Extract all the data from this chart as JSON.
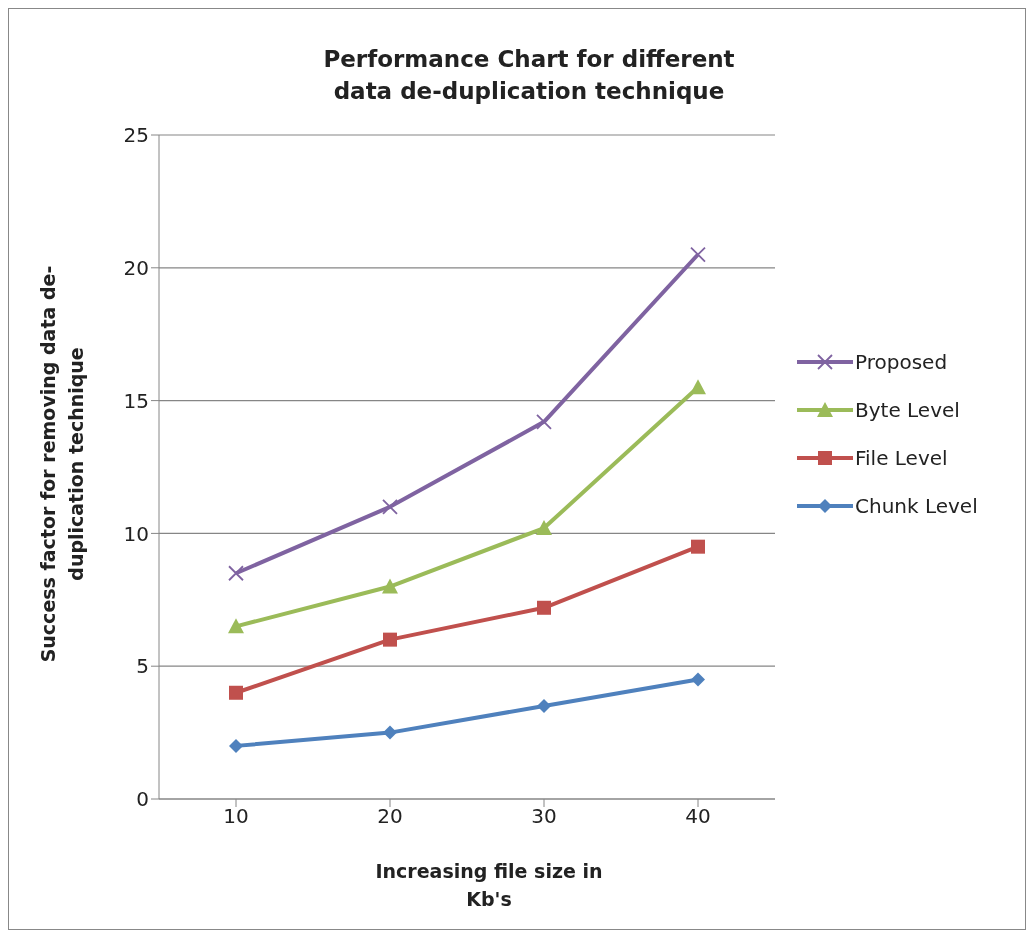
{
  "chart_data": {
    "type": "line",
    "title": "Performance Chart for different data de-duplication technique",
    "xlabel": "Increasing file size in Kb's",
    "ylabel": "Success factor for removing data de-duplication technique",
    "categories": [
      "10",
      "20",
      "30",
      "40"
    ],
    "series": [
      {
        "name": "Proposed",
        "color": "#7f63a1",
        "marker": "cross",
        "values": [
          8.5,
          11,
          14.2,
          20.5
        ]
      },
      {
        "name": "Byte Level",
        "color": "#9bbb59",
        "marker": "triangle",
        "values": [
          6.5,
          8,
          10.2,
          15.5
        ]
      },
      {
        "name": "File Level",
        "color": "#c0504d",
        "marker": "square",
        "values": [
          4,
          6,
          7.2,
          9.5
        ]
      },
      {
        "name": "Chunk Level",
        "color": "#4f81bd",
        "marker": "diamond",
        "values": [
          2,
          2.5,
          3.5,
          4.5
        ]
      }
    ],
    "ylim": [
      0,
      25
    ],
    "yticks": [
      0,
      5,
      10,
      15,
      20,
      25
    ],
    "grid": "y",
    "legend": "right",
    "line_style": "solid"
  }
}
